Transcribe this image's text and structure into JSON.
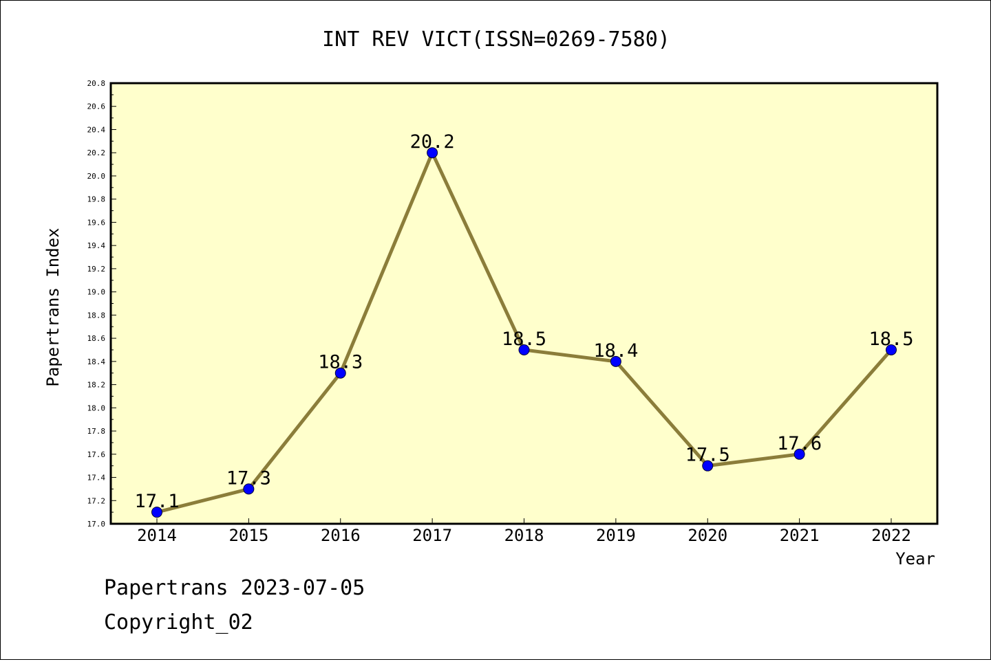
{
  "chart_data": {
    "type": "line",
    "title": "INT REV VICT(ISSN=0269-7580)",
    "xlabel": "Year",
    "ylabel": "Papertrans Index",
    "categories": [
      "2014",
      "2015",
      "2016",
      "2017",
      "2018",
      "2019",
      "2020",
      "2021",
      "2022"
    ],
    "values": [
      17.1,
      17.3,
      18.3,
      20.2,
      18.5,
      18.4,
      17.5,
      17.6,
      18.5
    ],
    "data_labels": [
      "17.1",
      "17.3",
      "18.3",
      "20.2",
      "18.5",
      "18.4",
      "17.5",
      "17.6",
      "18.5"
    ],
    "ylim": [
      17.0,
      20.8
    ],
    "yticks": [
      "17.0",
      "17.2",
      "17.4",
      "17.6",
      "17.8",
      "18.0",
      "18.2",
      "18.4",
      "18.6",
      "18.8",
      "19.0",
      "19.2",
      "19.4",
      "19.6",
      "19.8",
      "20.0",
      "20.2",
      "20.4",
      "20.6",
      "20.8"
    ],
    "grid": false,
    "colors": {
      "plot_bg": "#ffffcc",
      "line": "#8b7d3a",
      "marker": "#0000ff"
    }
  },
  "footer": {
    "line1": "Papertrans 2023-07-05",
    "line2": "Copyright_02"
  }
}
